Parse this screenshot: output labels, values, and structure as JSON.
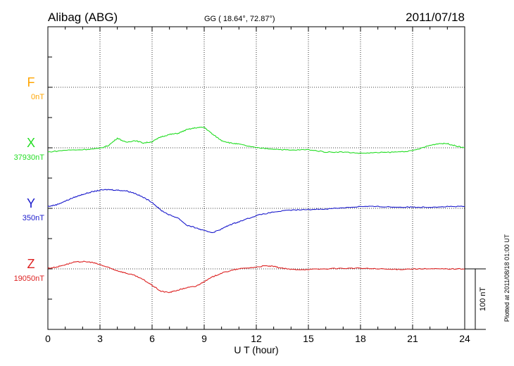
{
  "header": {
    "station": "Alibag (ABG)",
    "coords": "GG ( 18.64°,  72.87°)",
    "date": "2011/07/18"
  },
  "footer": {
    "plotted": "Plotted at 2011/08/18 01:00 UT"
  },
  "chart_data": {
    "type": "line",
    "xlabel": "U T (hour)",
    "xlim": [
      0,
      24
    ],
    "xticks": [
      "0",
      "3",
      "6",
      "9",
      "12",
      "15",
      "18",
      "21",
      "24"
    ],
    "scale_bar": "100 nT",
    "grid": true,
    "series": [
      {
        "name": "F",
        "base_label": "0nT",
        "color": "#ffa500",
        "values": []
      },
      {
        "name": "X",
        "base_label": "37930nT",
        "color": "#22dd22",
        "points": [
          [
            0,
            -7
          ],
          [
            1,
            -4
          ],
          [
            2,
            -3
          ],
          [
            3,
            -1
          ],
          [
            3.5,
            4
          ],
          [
            4,
            16
          ],
          [
            4.5,
            9
          ],
          [
            5,
            12
          ],
          [
            5.5,
            8
          ],
          [
            6,
            10
          ],
          [
            6.5,
            18
          ],
          [
            7,
            22
          ],
          [
            7.5,
            24
          ],
          [
            8,
            30
          ],
          [
            8.5,
            33
          ],
          [
            9,
            34
          ],
          [
            9.5,
            22
          ],
          [
            10,
            12
          ],
          [
            10.5,
            8
          ],
          [
            11,
            6
          ],
          [
            12,
            0
          ],
          [
            13,
            -2
          ],
          [
            14,
            -4
          ],
          [
            15,
            -3
          ],
          [
            16,
            -7
          ],
          [
            17,
            -7
          ],
          [
            18,
            -9
          ],
          [
            19,
            -8
          ],
          [
            20,
            -7
          ],
          [
            21,
            -5
          ],
          [
            22,
            4
          ],
          [
            22.5,
            7
          ],
          [
            23,
            7
          ],
          [
            23.5,
            3
          ],
          [
            24,
            0
          ]
        ]
      },
      {
        "name": "Y",
        "base_label": "350nT",
        "color": "#1a1acc",
        "points": [
          [
            0,
            3
          ],
          [
            0.5,
            6
          ],
          [
            1,
            12
          ],
          [
            1.5,
            18
          ],
          [
            2,
            23
          ],
          [
            2.5,
            27
          ],
          [
            3,
            30
          ],
          [
            3.5,
            31
          ],
          [
            4,
            30
          ],
          [
            4.5,
            29
          ],
          [
            5,
            25
          ],
          [
            5.5,
            18
          ],
          [
            6,
            10
          ],
          [
            6.5,
            -3
          ],
          [
            7,
            -11
          ],
          [
            7.5,
            -16
          ],
          [
            8,
            -28
          ],
          [
            8.5,
            -32
          ],
          [
            9,
            -37
          ],
          [
            9.5,
            -40
          ],
          [
            10,
            -34
          ],
          [
            10.5,
            -27
          ],
          [
            11,
            -22
          ],
          [
            12,
            -12
          ],
          [
            13,
            -6
          ],
          [
            14,
            -3
          ],
          [
            15,
            -2
          ],
          [
            16,
            -1
          ],
          [
            17,
            1
          ],
          [
            18,
            3
          ],
          [
            19,
            3
          ],
          [
            20,
            2
          ],
          [
            21,
            2
          ],
          [
            22,
            2
          ],
          [
            23,
            3
          ],
          [
            24,
            3
          ]
        ]
      },
      {
        "name": "Z",
        "base_label": "19050nT",
        "color": "#dd2222",
        "points": [
          [
            0,
            1
          ],
          [
            0.5,
            3
          ],
          [
            1,
            7
          ],
          [
            1.5,
            11
          ],
          [
            2,
            12
          ],
          [
            2.5,
            11
          ],
          [
            3,
            7
          ],
          [
            3.5,
            2
          ],
          [
            4,
            -3
          ],
          [
            4.5,
            -7
          ],
          [
            5,
            -11
          ],
          [
            5.5,
            -18
          ],
          [
            6,
            -27
          ],
          [
            6.5,
            -37
          ],
          [
            7,
            -39
          ],
          [
            7.5,
            -35
          ],
          [
            8,
            -31
          ],
          [
            8.5,
            -29
          ],
          [
            9,
            -21
          ],
          [
            9.5,
            -13
          ],
          [
            10,
            -7
          ],
          [
            10.5,
            -3
          ],
          [
            11,
            0
          ],
          [
            12,
            3
          ],
          [
            12.5,
            5
          ],
          [
            13,
            4
          ],
          [
            13.5,
            1
          ],
          [
            14,
            -1
          ],
          [
            15,
            -1
          ],
          [
            16,
            0
          ],
          [
            17,
            1
          ],
          [
            18,
            1
          ],
          [
            19,
            0
          ],
          [
            20,
            -1
          ],
          [
            21,
            0
          ],
          [
            22,
            0
          ],
          [
            23,
            0
          ],
          [
            24,
            0
          ]
        ]
      }
    ]
  }
}
